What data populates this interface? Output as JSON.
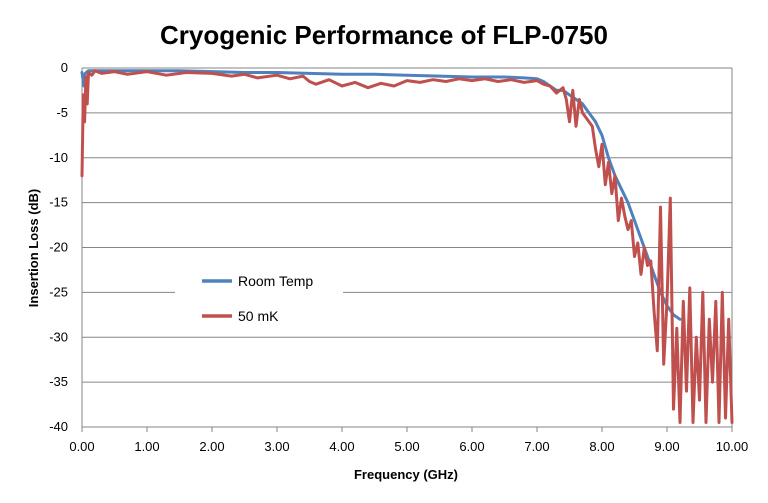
{
  "chart_data": {
    "type": "line",
    "title": "Cryogenic Performance of FLP-0750",
    "xlabel": "Frequency (GHz)",
    "ylabel": "Insertion Loss (dB)",
    "xlim": [
      0,
      10
    ],
    "ylim": [
      -40,
      0
    ],
    "x_ticks": [
      "0.00",
      "1.00",
      "2.00",
      "3.00",
      "4.00",
      "5.00",
      "6.00",
      "7.00",
      "8.00",
      "9.00",
      "10.00"
    ],
    "y_ticks": [
      "0",
      "-5",
      "-10",
      "-15",
      "-20",
      "-25",
      "-30",
      "-35",
      "-40"
    ],
    "grid": "horizontal",
    "legend_position": "center-left",
    "series": [
      {
        "name": "Room Temp",
        "color": "#4F81BD",
        "x": [
          0.0,
          0.03,
          0.05,
          0.1,
          0.5,
          1.0,
          1.5,
          2.0,
          2.5,
          3.0,
          3.5,
          4.0,
          4.5,
          5.0,
          5.5,
          6.0,
          6.5,
          6.8,
          7.0,
          7.1,
          7.2,
          7.3,
          7.4,
          7.5,
          7.6,
          7.7,
          7.8,
          7.9,
          8.0,
          8.1,
          8.2,
          8.3,
          8.4,
          8.5,
          8.6,
          8.7,
          8.8,
          8.9,
          9.0,
          9.1,
          9.2
        ],
        "y": [
          -0.5,
          -2.0,
          -0.6,
          -0.3,
          -0.3,
          -0.3,
          -0.3,
          -0.4,
          -0.5,
          -0.5,
          -0.6,
          -0.7,
          -0.7,
          -0.8,
          -0.9,
          -1.0,
          -1.0,
          -1.1,
          -1.2,
          -1.5,
          -2.0,
          -2.5,
          -2.5,
          -3.0,
          -3.5,
          -4.0,
          -5.0,
          -6.0,
          -7.5,
          -10.0,
          -12.0,
          -13.5,
          -15.0,
          -17.0,
          -19.0,
          -21.0,
          -23.0,
          -25.0,
          -26.5,
          -27.5,
          -28.0
        ]
      },
      {
        "name": "50 mK",
        "color": "#C0504D",
        "x": [
          0.0,
          0.02,
          0.04,
          0.06,
          0.08,
          0.1,
          0.15,
          0.2,
          0.3,
          0.5,
          0.7,
          1.0,
          1.3,
          1.6,
          2.0,
          2.3,
          2.5,
          2.7,
          3.0,
          3.2,
          3.4,
          3.5,
          3.6,
          3.8,
          4.0,
          4.2,
          4.4,
          4.6,
          4.8,
          5.0,
          5.2,
          5.4,
          5.6,
          5.8,
          6.0,
          6.2,
          6.4,
          6.6,
          6.8,
          7.0,
          7.1,
          7.2,
          7.3,
          7.35,
          7.4,
          7.45,
          7.5,
          7.55,
          7.6,
          7.65,
          7.7,
          7.75,
          7.8,
          7.85,
          7.9,
          7.95,
          8.0,
          8.05,
          8.1,
          8.15,
          8.2,
          8.25,
          8.3,
          8.35,
          8.4,
          8.45,
          8.5,
          8.55,
          8.6,
          8.65,
          8.7,
          8.75,
          8.8,
          8.85,
          8.9,
          8.95,
          9.0,
          9.05,
          9.1,
          9.15,
          9.2,
          9.25,
          9.3,
          9.35,
          9.4,
          9.45,
          9.5,
          9.55,
          9.6,
          9.65,
          9.7,
          9.75,
          9.8,
          9.85,
          9.9,
          9.95,
          10.0
        ],
        "y": [
          -12.0,
          -3.0,
          -6.0,
          -1.0,
          -4.0,
          -0.5,
          -0.8,
          -0.3,
          -0.6,
          -0.4,
          -0.7,
          -0.4,
          -0.8,
          -0.5,
          -0.6,
          -0.9,
          -0.7,
          -1.1,
          -0.8,
          -1.2,
          -0.9,
          -1.5,
          -1.8,
          -1.3,
          -2.0,
          -1.6,
          -2.2,
          -1.7,
          -2.0,
          -1.4,
          -1.6,
          -1.3,
          -1.5,
          -1.2,
          -1.4,
          -1.2,
          -1.5,
          -1.3,
          -1.6,
          -1.4,
          -1.8,
          -2.0,
          -2.8,
          -2.5,
          -2.2,
          -3.5,
          -6.0,
          -2.5,
          -6.5,
          -3.5,
          -5.0,
          -5.5,
          -6.0,
          -6.5,
          -9.0,
          -11.0,
          -8.5,
          -13.0,
          -10.5,
          -14.0,
          -12.0,
          -17.0,
          -14.5,
          -16.5,
          -18.0,
          -17.0,
          -21.0,
          -19.5,
          -23.0,
          -20.0,
          -22.0,
          -21.5,
          -27.0,
          -31.5,
          -15.5,
          -33.0,
          -26.0,
          -14.5,
          -38.0,
          -29.0,
          -39.5,
          -26.0,
          -36.0,
          -24.5,
          -39.5,
          -30.0,
          -37.0,
          -25.0,
          -39.5,
          -28.0,
          -35.0,
          -26.0,
          -39.5,
          -25.0,
          -39.0,
          -28.0,
          -39.5
        ]
      }
    ]
  }
}
